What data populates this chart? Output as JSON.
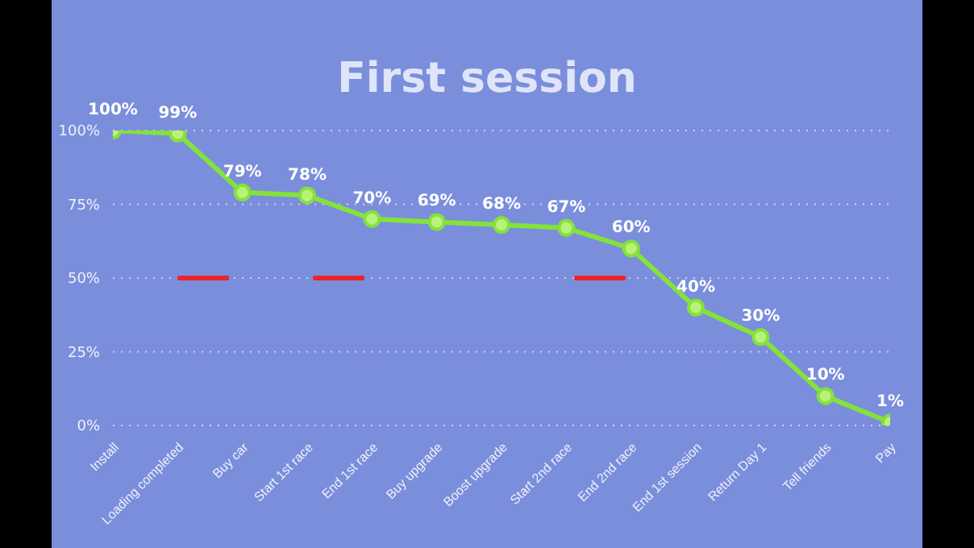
{
  "chart_data": {
    "type": "line",
    "title": "First session",
    "categories": [
      "Install",
      "Loading completed",
      "Buy car",
      "Start 1st race",
      "End 1st race",
      "Buy upgrade",
      "Boost upgrade",
      "Start 2nd race",
      "End 2nd race",
      "End 1st session",
      "Return Day 1",
      "Tell friends",
      "Pay"
    ],
    "series": [
      {
        "color": "#84e23a",
        "values": [
          100,
          99,
          79,
          78,
          70,
          69,
          68,
          67,
          60,
          40,
          30,
          10,
          1
        ],
        "value_labels": [
          "100%",
          "99%",
          "79%",
          "78%",
          "70%",
          "69%",
          "68%",
          "67%",
          "60%",
          "40%",
          "30%",
          "10%",
          "1%"
        ]
      }
    ],
    "ylim": [
      0,
      100
    ],
    "yticks": [
      {
        "value": 0,
        "label": "0%"
      },
      {
        "value": 25,
        "label": "25%"
      },
      {
        "value": 50,
        "label": "50%"
      },
      {
        "value": 75,
        "label": "75%"
      },
      {
        "value": 100,
        "label": "100%"
      }
    ],
    "grid": "y",
    "marker": "circle",
    "line_style": "solid",
    "legend": false
  }
}
